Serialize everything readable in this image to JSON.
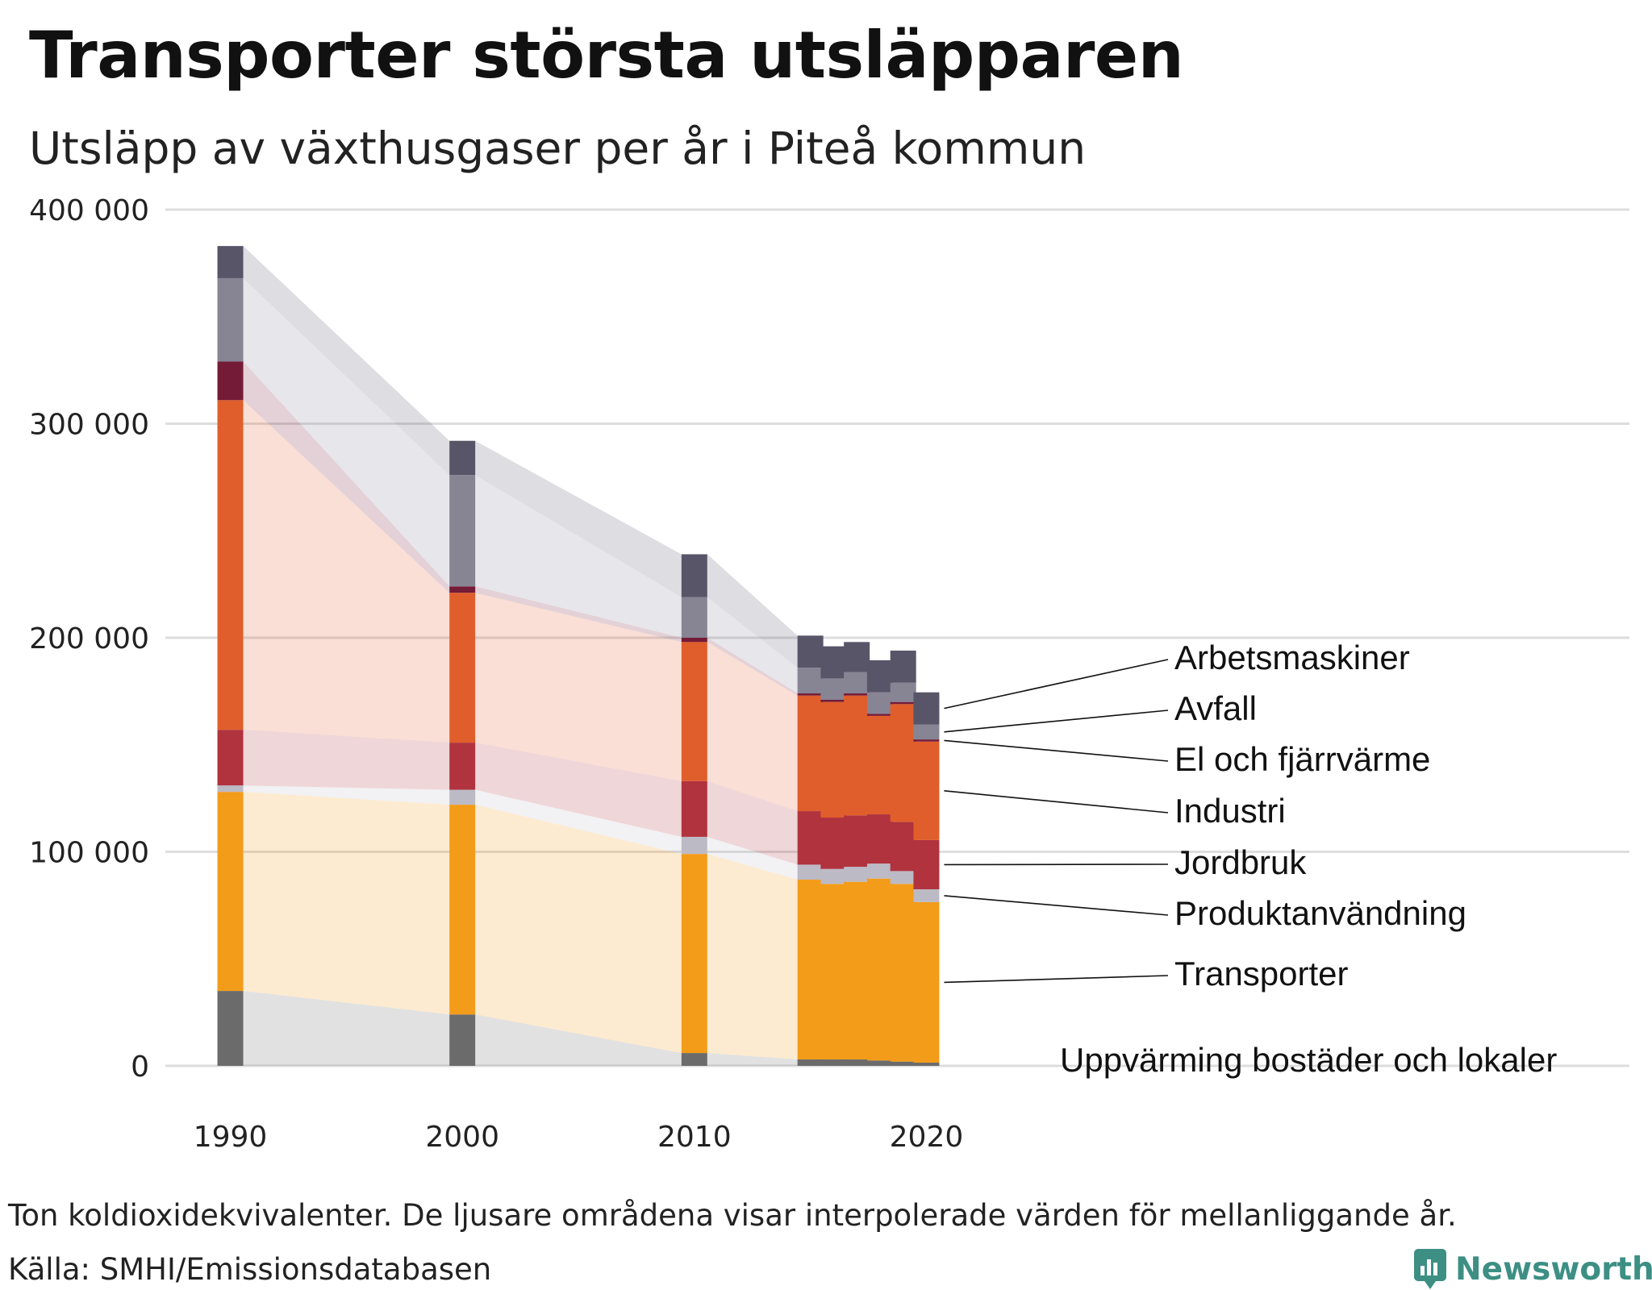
{
  "title": "Transporter största utsläpparen",
  "subtitle": "Utsläpp av växthusgaser per år i Piteå kommun",
  "note": "Ton koldioxidekvivalenter. De ljusare områdena visar interpolerade värden för mellanliggande år.",
  "source": "Källa: SMHI/Emissionsdatabasen",
  "brand": "Newsworthy",
  "colors": {
    "Uppvärming bostäder och lokaler": "#6b6b6b",
    "Transporter": "#f39c19",
    "Produktanvändning": "#bcbac5",
    "Jordbruk": "#b0333e",
    "Industri": "#e05e2b",
    "El och fjärrvärme": "#741b37",
    "Avfall": "#878494",
    "Arbetsmaskiner": "#585568",
    "grid": "#dddddd",
    "brand": "#3d8f84"
  },
  "chart_data": {
    "type": "bar",
    "stacked": true,
    "x": [
      1990,
      2000,
      2010,
      2015,
      2016,
      2017,
      2018,
      2019,
      2020
    ],
    "xticks": [
      "1990",
      "2000",
      "2010",
      "2020"
    ],
    "yticks": [
      "0",
      "100 000",
      "200 000",
      "300 000",
      "400 000"
    ],
    "ylim": [
      0,
      400000
    ],
    "grid": true,
    "legend": "direct labels, right",
    "series": [
      {
        "name": "Uppvärming bostäder och lokaler",
        "values": [
          35000,
          24000,
          6000,
          3000,
          3000,
          3000,
          2500,
          2000,
          1500
        ]
      },
      {
        "name": "Transporter",
        "values": [
          93000,
          98000,
          93000,
          84000,
          82000,
          83000,
          85000,
          83000,
          75000
        ]
      },
      {
        "name": "Produktanvändning",
        "values": [
          3000,
          7000,
          8000,
          7000,
          7000,
          7000,
          7000,
          6000,
          6000
        ]
      },
      {
        "name": "Jordbruk",
        "values": [
          26000,
          22000,
          26000,
          25000,
          24000,
          24000,
          23000,
          23000,
          23000
        ]
      },
      {
        "name": "Industri",
        "values": [
          154000,
          70000,
          65000,
          54000,
          54000,
          56000,
          46000,
          55000,
          46000
        ]
      },
      {
        "name": "El och fjärrvärme",
        "values": [
          18000,
          3000,
          2000,
          1000,
          1000,
          1000,
          1000,
          1000,
          1000
        ]
      },
      {
        "name": "Avfall",
        "values": [
          39000,
          52000,
          19000,
          12000,
          10000,
          10000,
          10000,
          9000,
          7000
        ]
      },
      {
        "name": "Arbetsmaskiner",
        "values": [
          15000,
          16000,
          20000,
          15000,
          15000,
          14000,
          15000,
          15000,
          15000
        ]
      }
    ]
  }
}
